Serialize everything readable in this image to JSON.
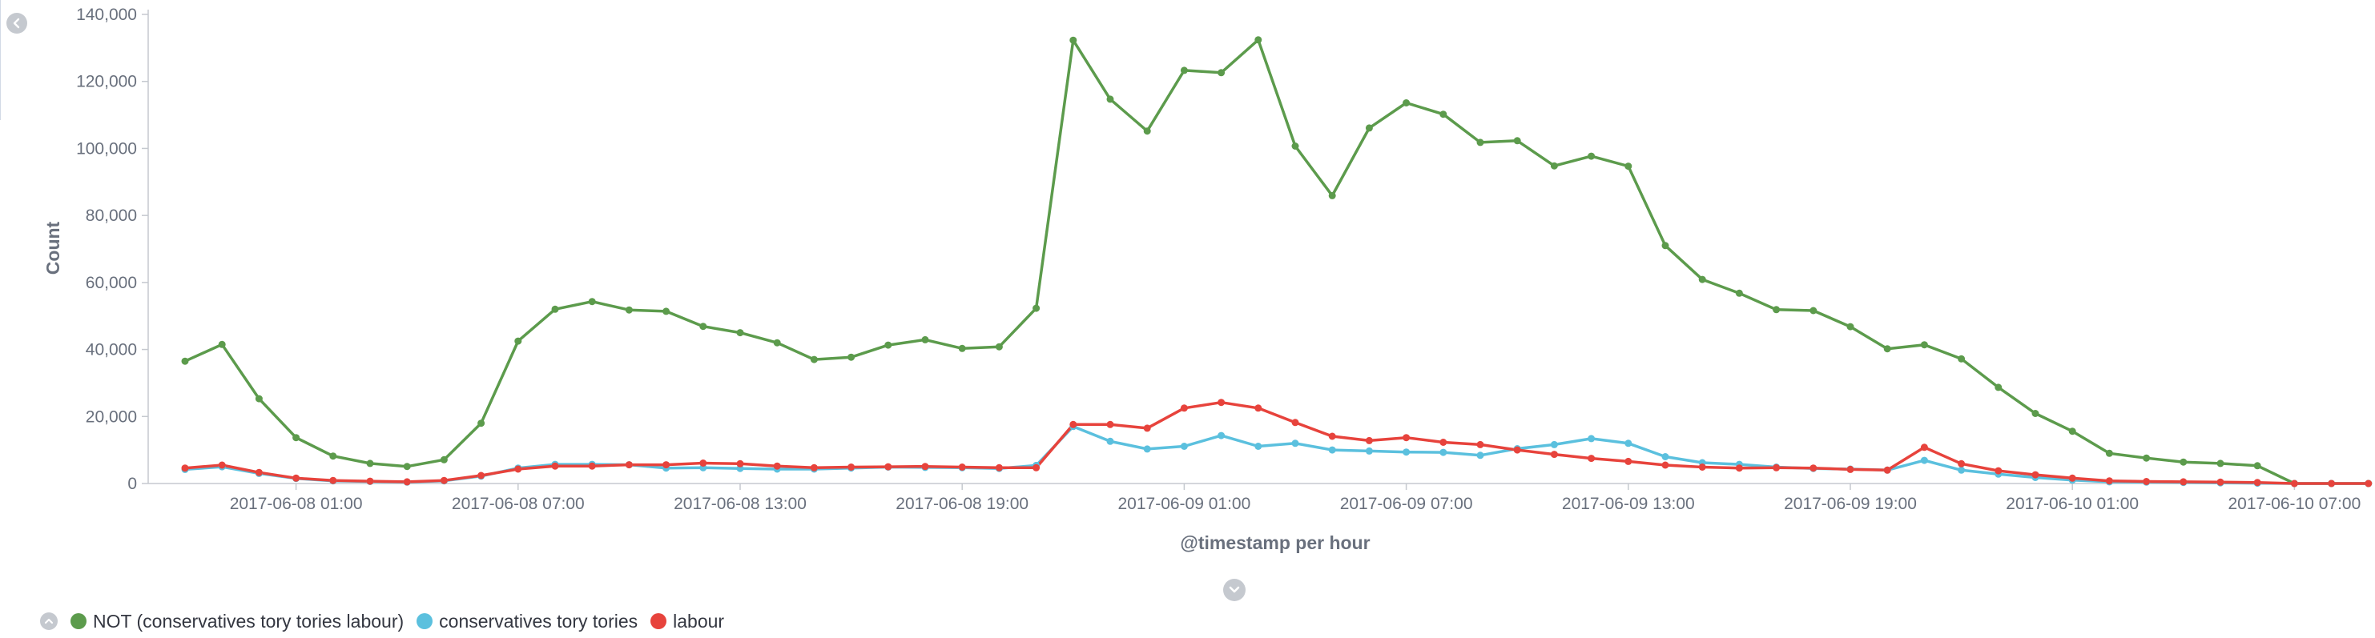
{
  "chart_data": {
    "type": "line",
    "xlabel": "@timestamp per hour",
    "ylabel": "Count",
    "ylim": [
      0,
      140000
    ],
    "y_ticks": [
      "0",
      "20,000",
      "40,000",
      "60,000",
      "80,000",
      "100,000",
      "120,000",
      "140,000"
    ],
    "x_tick_labels": [
      "2017-06-08 01:00",
      "2017-06-08 07:00",
      "2017-06-08 13:00",
      "2017-06-08 19:00",
      "2017-06-09 01:00",
      "2017-06-09 07:00",
      "2017-06-09 13:00",
      "2017-06-09 19:00",
      "2017-06-10 01:00",
      "2017-06-10 07:00"
    ],
    "x_start": "2017-06-07 22:00",
    "x_interval": "1 hour",
    "grid": false,
    "legend_position": "bottom-left",
    "series": [
      {
        "name": "NOT (conservatives tory tories labour)",
        "color": "#5c9b4c",
        "values": [
          36500,
          41500,
          25300,
          13700,
          8200,
          6000,
          5100,
          7100,
          18000,
          42500,
          52000,
          54300,
          51800,
          51400,
          46900,
          45000,
          42000,
          37000,
          37700,
          41300,
          42900,
          40300,
          40800,
          52300,
          132300,
          114700,
          105200,
          123300,
          122600,
          132400,
          100700,
          85900,
          106100,
          113600,
          110200,
          101800,
          102300,
          94800,
          97700,
          94700,
          71000,
          60900,
          56800,
          51900,
          51600,
          46800,
          40200,
          41400,
          37200,
          28700,
          20900,
          15600,
          9000,
          7600,
          6400,
          6000,
          5300,
          0,
          0,
          0
        ]
      },
      {
        "name": "conservatives tory tories",
        "color": "#5bc0de",
        "values": [
          4200,
          5000,
          3000,
          1500,
          800,
          600,
          400,
          800,
          2200,
          4600,
          5700,
          5700,
          5600,
          4600,
          4700,
          4500,
          4300,
          4300,
          4600,
          4900,
          4800,
          4700,
          4500,
          5400,
          17000,
          12600,
          10300,
          11100,
          14300,
          11100,
          12000,
          10000,
          9700,
          9400,
          9300,
          8400,
          10400,
          11600,
          13400,
          12000,
          8000,
          6200,
          5700,
          4900,
          4500,
          4300,
          4000,
          6900,
          4000,
          2800,
          1800,
          1000,
          500,
          400,
          300,
          200,
          100,
          0,
          0,
          0
        ]
      },
      {
        "name": "labour",
        "color": "#e7433c",
        "values": [
          4600,
          5500,
          3300,
          1600,
          900,
          700,
          500,
          900,
          2400,
          4300,
          5200,
          5200,
          5600,
          5600,
          6100,
          5900,
          5200,
          4700,
          4900,
          5000,
          5100,
          4900,
          4700,
          4700,
          17600,
          17600,
          16500,
          22500,
          24200,
          22500,
          18200,
          14100,
          12800,
          13700,
          12300,
          11600,
          10000,
          8700,
          7500,
          6600,
          5500,
          4900,
          4600,
          4700,
          4600,
          4200,
          4000,
          10800,
          5900,
          3800,
          2600,
          1600,
          800,
          600,
          500,
          400,
          300,
          0,
          0,
          0
        ]
      }
    ]
  }
}
